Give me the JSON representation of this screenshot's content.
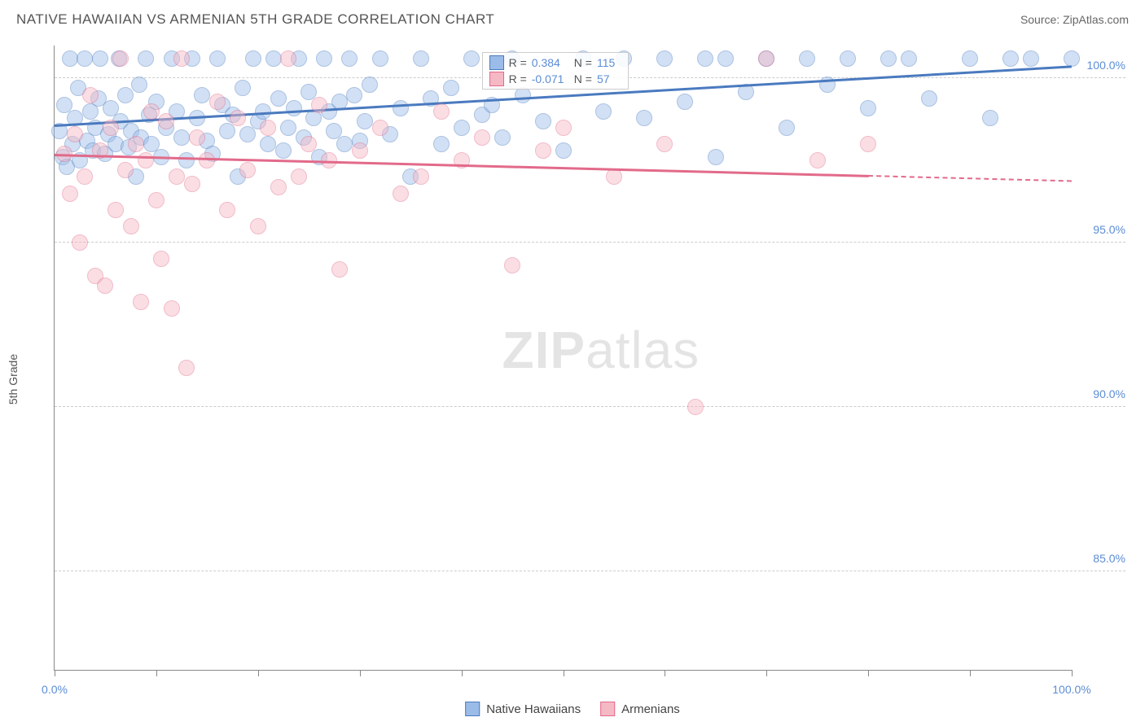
{
  "title": "NATIVE HAWAIIAN VS ARMENIAN 5TH GRADE CORRELATION CHART",
  "source": "Source: ZipAtlas.com",
  "y_axis_label": "5th Grade",
  "watermark_a": "ZIP",
  "watermark_b": "atlas",
  "chart": {
    "type": "scatter",
    "xlim": [
      0,
      100
    ],
    "ylim": [
      82,
      101
    ],
    "x_ticks": [
      0,
      10,
      20,
      30,
      40,
      50,
      60,
      70,
      80,
      90,
      100
    ],
    "x_tick_labels": {
      "0": "0.0%",
      "100": "100.0%"
    },
    "y_ticks": [
      85,
      90,
      95,
      100
    ],
    "y_tick_labels": {
      "85": "85.0%",
      "90": "90.0%",
      "95": "95.0%",
      "100": "100.0%"
    },
    "background_color": "#ffffff",
    "grid_color": "#cccccc",
    "point_radius": 10,
    "point_opacity": 0.45,
    "point_border_opacity": 0.7,
    "trend_line_width": 3,
    "series": [
      {
        "name": "Native Hawaiians",
        "color_fill": "#9bbce8",
        "color_stroke": "#4a7abf",
        "R": "0.384",
        "N": "115",
        "trend": {
          "x1": 0,
          "y1": 98.6,
          "x2": 100,
          "y2": 100.4,
          "extrapolate_from": 100
        },
        "points": [
          [
            0.5,
            98.4
          ],
          [
            0.8,
            97.6
          ],
          [
            1,
            99.2
          ],
          [
            1.2,
            97.3
          ],
          [
            1.5,
            100.6
          ],
          [
            1.8,
            98.0
          ],
          [
            2,
            98.8
          ],
          [
            2.3,
            99.7
          ],
          [
            2.5,
            97.5
          ],
          [
            3,
            100.6
          ],
          [
            3.2,
            98.1
          ],
          [
            3.5,
            99.0
          ],
          [
            3.8,
            97.8
          ],
          [
            4,
            98.5
          ],
          [
            4.3,
            99.4
          ],
          [
            4.5,
            100.6
          ],
          [
            5,
            97.7
          ],
          [
            5.3,
            98.3
          ],
          [
            5.5,
            99.1
          ],
          [
            6,
            98.0
          ],
          [
            6.3,
            100.6
          ],
          [
            6.5,
            98.7
          ],
          [
            7,
            99.5
          ],
          [
            7.3,
            97.9
          ],
          [
            7.5,
            98.4
          ],
          [
            8,
            97.0
          ],
          [
            8.3,
            99.8
          ],
          [
            8.5,
            98.2
          ],
          [
            9,
            100.6
          ],
          [
            9.3,
            98.9
          ],
          [
            9.5,
            98.0
          ],
          [
            10,
            99.3
          ],
          [
            10.5,
            97.6
          ],
          [
            11,
            98.5
          ],
          [
            11.5,
            100.6
          ],
          [
            12,
            99.0
          ],
          [
            12.5,
            98.2
          ],
          [
            13,
            97.5
          ],
          [
            13.5,
            100.6
          ],
          [
            14,
            98.8
          ],
          [
            14.5,
            99.5
          ],
          [
            15,
            98.1
          ],
          [
            15.5,
            97.7
          ],
          [
            16,
            100.6
          ],
          [
            16.5,
            99.2
          ],
          [
            17,
            98.4
          ],
          [
            17.5,
            98.9
          ],
          [
            18,
            97.0
          ],
          [
            18.5,
            99.7
          ],
          [
            19,
            98.3
          ],
          [
            19.5,
            100.6
          ],
          [
            20,
            98.7
          ],
          [
            20.5,
            99.0
          ],
          [
            21,
            98.0
          ],
          [
            21.5,
            100.6
          ],
          [
            22,
            99.4
          ],
          [
            22.5,
            97.8
          ],
          [
            23,
            98.5
          ],
          [
            23.5,
            99.1
          ],
          [
            24,
            100.6
          ],
          [
            24.5,
            98.2
          ],
          [
            25,
            99.6
          ],
          [
            25.5,
            98.8
          ],
          [
            26,
            97.6
          ],
          [
            26.5,
            100.6
          ],
          [
            27,
            99.0
          ],
          [
            27.5,
            98.4
          ],
          [
            28,
            99.3
          ],
          [
            28.5,
            98.0
          ],
          [
            29,
            100.6
          ],
          [
            29.5,
            99.5
          ],
          [
            30,
            98.1
          ],
          [
            30.5,
            98.7
          ],
          [
            31,
            99.8
          ],
          [
            32,
            100.6
          ],
          [
            33,
            98.3
          ],
          [
            34,
            99.1
          ],
          [
            35,
            97.0
          ],
          [
            36,
            100.6
          ],
          [
            37,
            99.4
          ],
          [
            38,
            98.0
          ],
          [
            39,
            99.7
          ],
          [
            40,
            98.5
          ],
          [
            41,
            100.6
          ],
          [
            42,
            98.9
          ],
          [
            43,
            99.2
          ],
          [
            44,
            98.2
          ],
          [
            45,
            100.6
          ],
          [
            46,
            99.5
          ],
          [
            48,
            98.7
          ],
          [
            50,
            97.8
          ],
          [
            52,
            100.6
          ],
          [
            54,
            99.0
          ],
          [
            56,
            100.6
          ],
          [
            58,
            98.8
          ],
          [
            60,
            100.6
          ],
          [
            62,
            99.3
          ],
          [
            64,
            100.6
          ],
          [
            65,
            97.6
          ],
          [
            66,
            100.6
          ],
          [
            68,
            99.6
          ],
          [
            70,
            100.6
          ],
          [
            72,
            98.5
          ],
          [
            74,
            100.6
          ],
          [
            76,
            99.8
          ],
          [
            78,
            100.6
          ],
          [
            80,
            99.1
          ],
          [
            82,
            100.6
          ],
          [
            84,
            100.6
          ],
          [
            86,
            99.4
          ],
          [
            90,
            100.6
          ],
          [
            92,
            98.8
          ],
          [
            94,
            100.6
          ],
          [
            96,
            100.6
          ],
          [
            100,
            100.6
          ]
        ]
      },
      {
        "name": "Armenians",
        "color_fill": "#f5b8c5",
        "color_stroke": "#e26a8a",
        "R": "-0.071",
        "N": "57",
        "trend": {
          "x1": 0,
          "y1": 97.7,
          "x2": 100,
          "y2": 96.9,
          "extrapolate_from": 80
        },
        "points": [
          [
            1,
            97.7
          ],
          [
            1.5,
            96.5
          ],
          [
            2,
            98.3
          ],
          [
            2.5,
            95.0
          ],
          [
            3,
            97.0
          ],
          [
            3.5,
            99.5
          ],
          [
            4,
            94.0
          ],
          [
            4.5,
            97.8
          ],
          [
            5,
            93.7
          ],
          [
            5.5,
            98.5
          ],
          [
            6,
            96.0
          ],
          [
            6.5,
            100.6
          ],
          [
            7,
            97.2
          ],
          [
            7.5,
            95.5
          ],
          [
            8,
            98.0
          ],
          [
            8.5,
            93.2
          ],
          [
            9,
            97.5
          ],
          [
            9.5,
            99.0
          ],
          [
            10,
            96.3
          ],
          [
            10.5,
            94.5
          ],
          [
            11,
            98.7
          ],
          [
            11.5,
            93.0
          ],
          [
            12,
            97.0
          ],
          [
            12.5,
            100.6
          ],
          [
            13,
            91.2
          ],
          [
            13.5,
            96.8
          ],
          [
            14,
            98.2
          ],
          [
            15,
            97.5
          ],
          [
            16,
            99.3
          ],
          [
            17,
            96.0
          ],
          [
            18,
            98.8
          ],
          [
            19,
            97.2
          ],
          [
            20,
            95.5
          ],
          [
            21,
            98.5
          ],
          [
            22,
            96.7
          ],
          [
            23,
            100.6
          ],
          [
            24,
            97.0
          ],
          [
            25,
            98.0
          ],
          [
            26,
            99.2
          ],
          [
            27,
            97.5
          ],
          [
            28,
            94.2
          ],
          [
            30,
            97.8
          ],
          [
            32,
            98.5
          ],
          [
            34,
            96.5
          ],
          [
            36,
            97.0
          ],
          [
            38,
            99.0
          ],
          [
            40,
            97.5
          ],
          [
            42,
            98.2
          ],
          [
            45,
            94.3
          ],
          [
            48,
            97.8
          ],
          [
            50,
            98.5
          ],
          [
            55,
            97.0
          ],
          [
            60,
            98.0
          ],
          [
            63,
            90.0
          ],
          [
            70,
            100.6
          ],
          [
            75,
            97.5
          ],
          [
            80,
            98.0
          ]
        ]
      }
    ]
  },
  "legend_stats": {
    "r_label": "R =",
    "n_label": "N ="
  },
  "bottom_legend": [
    {
      "label": "Native Hawaiians",
      "fill": "#9bbce8",
      "stroke": "#4a7abf"
    },
    {
      "label": "Armenians",
      "fill": "#f5b8c5",
      "stroke": "#e26a8a"
    }
  ]
}
